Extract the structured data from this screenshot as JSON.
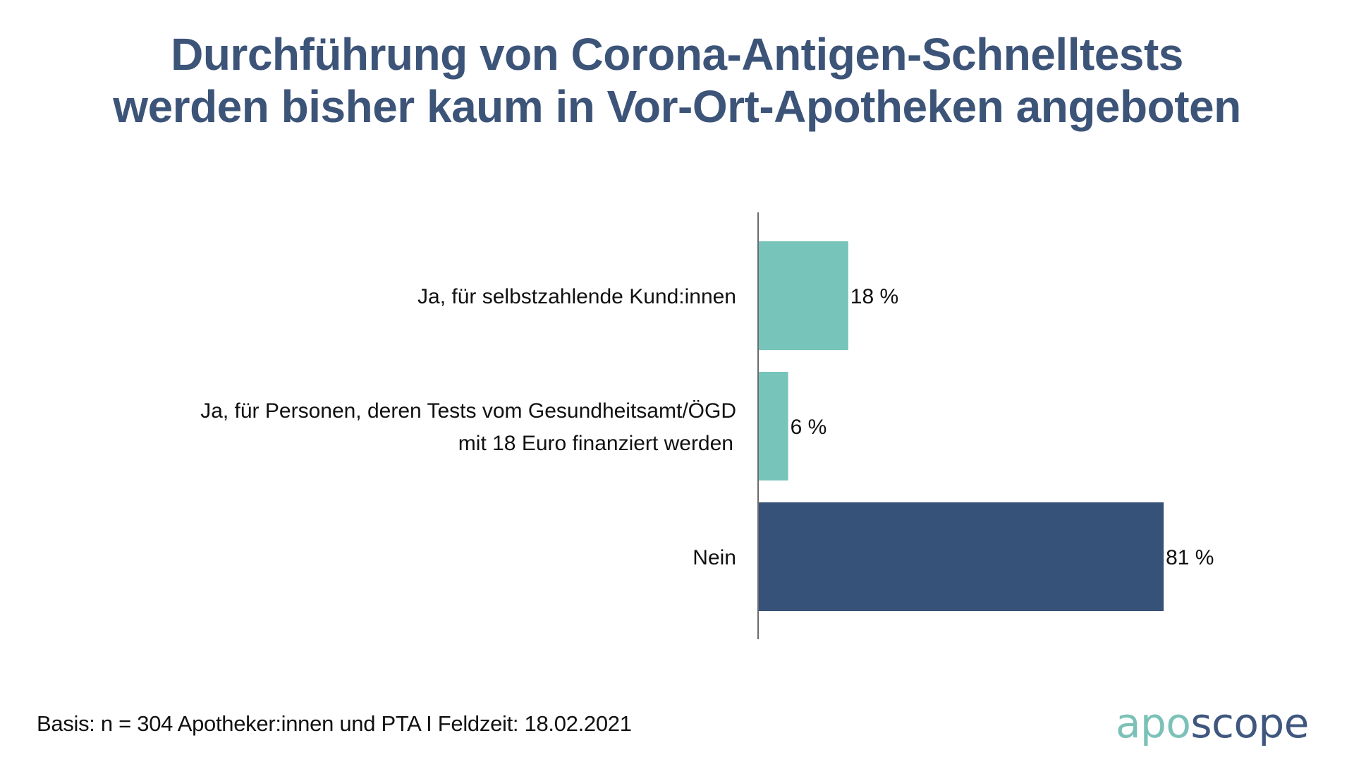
{
  "title": {
    "line1": "Durchführung von Corona-Antigen-Schnelltests",
    "line2": "werden bisher kaum in Vor-Ort-Apotheken angeboten"
  },
  "chart_data": {
    "type": "bar",
    "orientation": "horizontal",
    "title": "Durchführung von Corona-Antigen-Schnelltests werden bisher kaum in Vor-Ort-Apotheken angeboten",
    "categories": [
      [
        "Ja, für selbstzahlende Kund:innen"
      ],
      [
        "Ja, für Personen, deren Tests vom Gesundheitsamt/ÖGD",
        "mit 18 Euro finanziert werden"
      ],
      [
        "Nein"
      ]
    ],
    "values": [
      18,
      6,
      81
    ],
    "value_labels": [
      "18 %",
      "6 %",
      "81 %"
    ],
    "bar_colors": [
      "#76C4BA",
      "#76C4BA",
      "#375278"
    ],
    "unit": "%",
    "xlim": [
      0,
      100
    ],
    "xlabel": "",
    "ylabel": "",
    "grid": false,
    "legend": "none"
  },
  "footer": {
    "note": "Basis: n = 304 Apotheker:innen und PTA I Feldzeit: 18.02.2021"
  },
  "logo": {
    "part1": "apo",
    "part2": "scope",
    "color1": "#7CC1B8",
    "color2": "#3F577E"
  }
}
